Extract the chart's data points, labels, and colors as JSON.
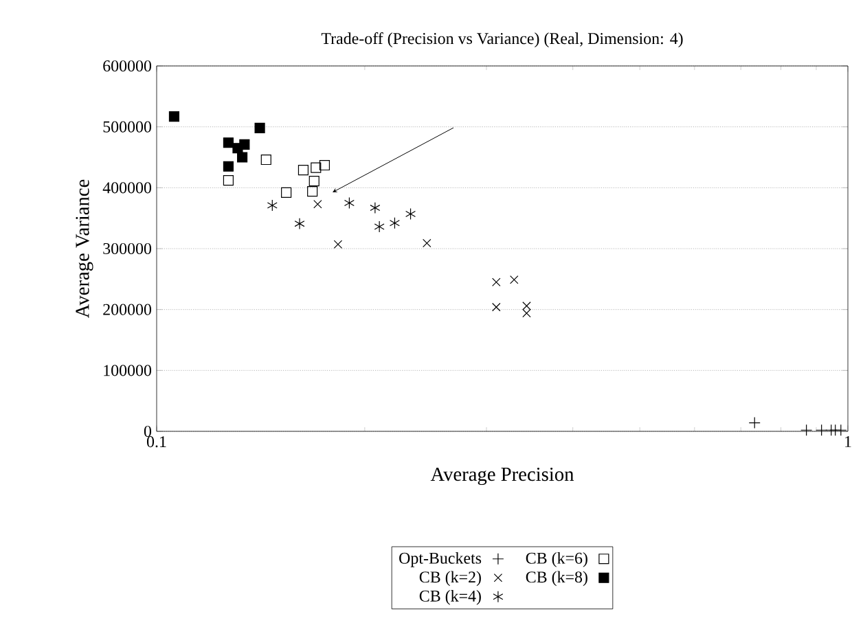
{
  "chart_data": {
    "type": "scatter",
    "title": "Trade-off (Precision vs Variance) (Real, Dimension: 4)",
    "xlabel": "Average Precision",
    "ylabel": "Average Variance",
    "log": "x",
    "xlim": [
      0.1,
      1
    ],
    "xticks": [
      0.1,
      1
    ],
    "ylim": [
      0,
      600000
    ],
    "yticks": [
      0,
      100000,
      200000,
      300000,
      400000,
      500000,
      600000
    ],
    "grid": "y",
    "legend": "bottom",
    "series": [
      {
        "name": "Opt-Buckets",
        "color": "#000000",
        "marker": "plus",
        "x": [
          0.733,
          0.871,
          0.916,
          0.946,
          0.959,
          0.977
        ],
        "values": [
          14000,
          2000,
          2000,
          2000,
          2000,
          2000
        ]
      },
      {
        "name": "CB (k=2)",
        "color": "#000000",
        "marker": "cross",
        "x": [
          0.171,
          0.183,
          0.246,
          0.31,
          0.329,
          0.31,
          0.343,
          0.343
        ],
        "values": [
          373000,
          307000,
          309000,
          245000,
          249000,
          204000,
          206000,
          194000
        ]
      },
      {
        "name": "CB (k=4)",
        "color": "#000000",
        "x": [
          0.147,
          0.161,
          0.19,
          0.207,
          0.21,
          0.221,
          0.233
        ],
        "values": [
          371000,
          341000,
          375000,
          367000,
          336000,
          342000,
          357000
        ]
      },
      {
        "name": "CB (k=6)",
        "color": "#000000",
        "marker": "square",
        "x": [
          0.127,
          0.144,
          0.154,
          0.163,
          0.17,
          0.175,
          0.169,
          0.168
        ],
        "values": [
          412000,
          446000,
          392000,
          429000,
          433000,
          437000,
          411000,
          394000
        ]
      },
      {
        "name": "CB (k=8)",
        "color": "#000000",
        "marker": "square-filled",
        "x": [
          0.106,
          0.141,
          0.127,
          0.134,
          0.133,
          0.127,
          0.131
        ],
        "values": [
          517000,
          498000,
          474000,
          471000,
          450000,
          435000,
          465000
        ]
      }
    ]
  }
}
